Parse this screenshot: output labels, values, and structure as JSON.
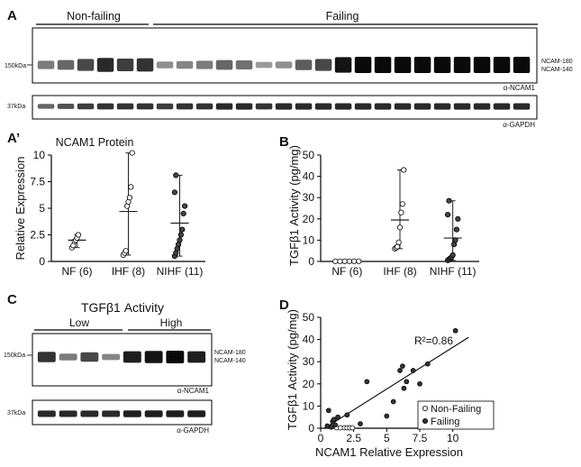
{
  "panel_a": {
    "label": "A",
    "group_nonfailing": "Non-failing",
    "group_failing": "Failing",
    "marker_150": "150kDa",
    "marker_37": "37kDa",
    "band_top": "NCAM-180",
    "band_bottom": "NCAM-140",
    "antibody_ncam": "α-NCAM1",
    "antibody_gapdh": "α-GAPDH",
    "ncam_intensity": [
      0.45,
      0.55,
      0.7,
      0.85,
      0.75,
      0.8,
      0.35,
      0.4,
      0.45,
      0.55,
      0.5,
      0.3,
      0.35,
      0.6,
      0.7,
      0.95,
      1.0,
      1.0,
      1.0,
      1.0,
      1.0,
      1.0,
      1.0,
      1.0,
      1.0
    ],
    "gapdh_intensity": [
      0.55,
      0.65,
      0.75,
      0.8,
      0.8,
      0.8,
      0.75,
      0.8,
      0.8,
      0.85,
      0.85,
      0.8,
      0.85,
      0.85,
      0.85,
      0.85,
      0.85,
      0.85,
      0.85,
      0.85,
      0.85,
      0.85,
      0.85,
      0.85,
      0.85
    ]
  },
  "panel_c": {
    "label": "C",
    "title": "TGFβ1 Activity",
    "group_low": "Low",
    "group_high": "High",
    "marker_150": "150kDa",
    "marker_37": "37kDa",
    "band_top": "NCAM-180",
    "band_bottom": "NCAM-140",
    "antibody_ncam": "α-NCAM1",
    "antibody_gapdh": "α-GAPDH",
    "ncam_intensity": [
      0.8,
      0.45,
      0.7,
      0.4,
      0.9,
      0.95,
      1.0,
      0.9
    ],
    "gapdh_intensity": [
      0.85,
      0.85,
      0.85,
      0.85,
      0.9,
      0.9,
      0.9,
      0.9
    ]
  },
  "chart_data": [
    {
      "panel": "A’",
      "type": "scatter",
      "title": "NCAM1 Protein",
      "ylabel": "Relative Expression",
      "ylim": [
        0,
        10
      ],
      "yticks": [
        0,
        2.5,
        5,
        7.5,
        10
      ],
      "categories": [
        "NF (6)",
        "IHF (8)",
        "NIHF (11)"
      ],
      "series": [
        {
          "category": "NF (6)",
          "fill": "open",
          "values": [
            1.3,
            1.5,
            1.9,
            2.0,
            2.2,
            2.5
          ],
          "mean": 2.0,
          "range": [
            1.3,
            2.5
          ]
        },
        {
          "category": "IHF (8)",
          "fill": "open",
          "values": [
            0.6,
            0.8,
            1.0,
            5.2,
            5.6,
            6.0,
            7.0,
            10.2
          ],
          "mean": 4.7,
          "range": [
            0.6,
            10.2
          ]
        },
        {
          "category": "NIHF (11)",
          "fill": "filled",
          "values": [
            0.5,
            0.8,
            1.2,
            1.6,
            2.0,
            2.5,
            3.0,
            4.5,
            5.2,
            6.5,
            8.1
          ],
          "mean": 3.6,
          "range": [
            0.5,
            8.1
          ]
        }
      ]
    },
    {
      "panel": "B",
      "type": "scatter",
      "ylabel": "TGFβ1 Activity (pg/mg)",
      "ylim": [
        0,
        50
      ],
      "yticks": [
        0,
        10,
        20,
        30,
        40,
        50
      ],
      "categories": [
        "NF (6)",
        "IHF (8)",
        "NIHF (11)"
      ],
      "series": [
        {
          "category": "NF (6)",
          "fill": "open",
          "values": [
            0.1,
            0.1,
            0.1,
            0.1,
            0.1,
            0.1
          ],
          "mean": 0.1,
          "range": [
            0,
            0.2
          ]
        },
        {
          "category": "IHF (8)",
          "fill": "open",
          "values": [
            6,
            6.5,
            7,
            9,
            16,
            23,
            27,
            43
          ],
          "mean": 19.5,
          "range": [
            6,
            43
          ]
        },
        {
          "category": "NIHF (11)",
          "fill": "filled",
          "values": [
            0.5,
            1,
            1.5,
            2,
            3,
            8,
            10,
            15,
            20,
            22,
            28.5
          ],
          "mean": 11,
          "range": [
            0.5,
            28.5
          ]
        }
      ]
    },
    {
      "panel": "D",
      "type": "scatter",
      "xlabel": "NCAM1 Relative Expression",
      "ylabel": "TGFβ1 Activity (pg/mg)",
      "xlim": [
        0,
        12
      ],
      "ylim": [
        0,
        50
      ],
      "xticks": [
        0,
        2.5,
        5,
        7.5,
        10
      ],
      "yticks": [
        0,
        10,
        20,
        30,
        40,
        50
      ],
      "annotation": "R²=0.86",
      "fit_line": {
        "x": [
          0.3,
          11.2
        ],
        "y": [
          0,
          41
        ]
      },
      "series": [
        {
          "name": "Non-Failing",
          "fill": "open",
          "x": [
            1.2,
            1.5,
            1.8,
            2.0,
            2.2,
            2.4
          ],
          "y": [
            0.2,
            0.2,
            0.2,
            0.2,
            0.2,
            0.2
          ]
        },
        {
          "name": "Failing",
          "fill": "filled",
          "x": [
            0.5,
            0.6,
            0.8,
            0.9,
            1.0,
            1.1,
            1.3,
            2.0,
            3.0,
            3.5,
            5.0,
            5.5,
            6.0,
            6.2,
            6.3,
            6.5,
            7.0,
            7.5,
            8.1,
            10.2
          ],
          "y": [
            1,
            8,
            0.5,
            3,
            4,
            1.5,
            5,
            6,
            2,
            21,
            5.5,
            12,
            26,
            28,
            18,
            21,
            26,
            20,
            29,
            44
          ]
        }
      ]
    }
  ]
}
